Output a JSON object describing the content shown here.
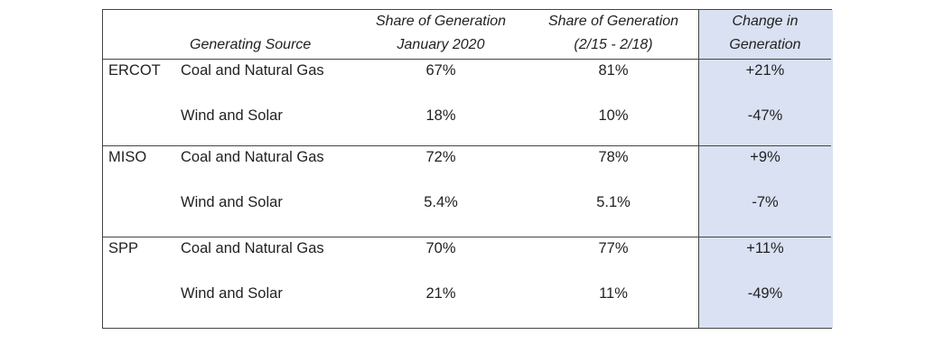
{
  "header": {
    "source": "Generating Source",
    "jan": [
      "Share of  Generation",
      "January 2020"
    ],
    "feb": [
      "Share of Generation",
      "(2/15 - 2/18)"
    ],
    "change": [
      "Change in",
      "Generation"
    ]
  },
  "regions": [
    {
      "name": "ERCOT",
      "rows": [
        {
          "source": "Coal and Natural Gas",
          "jan": "67%",
          "feb": "81%",
          "change": "+21%"
        },
        {
          "source": "Wind and Solar",
          "jan": "18%",
          "feb": "10%",
          "change": "-47%"
        }
      ]
    },
    {
      "name": "MISO",
      "rows": [
        {
          "source": "Coal and Natural Gas",
          "jan": "72%",
          "feb": "78%",
          "change": "+9%"
        },
        {
          "source": "Wind and Solar",
          "jan": "5.4%",
          "feb": "5.1%",
          "change": "-7%"
        }
      ]
    },
    {
      "name": "SPP",
      "rows": [
        {
          "source": "Coal and Natural Gas",
          "jan": "70%",
          "feb": "77%",
          "change": "+11%"
        },
        {
          "source": "Wind and Solar",
          "jan": "21%",
          "feb": "11%",
          "change": "-49%"
        }
      ]
    }
  ],
  "colors": {
    "highlight": "#d9e1f2"
  }
}
